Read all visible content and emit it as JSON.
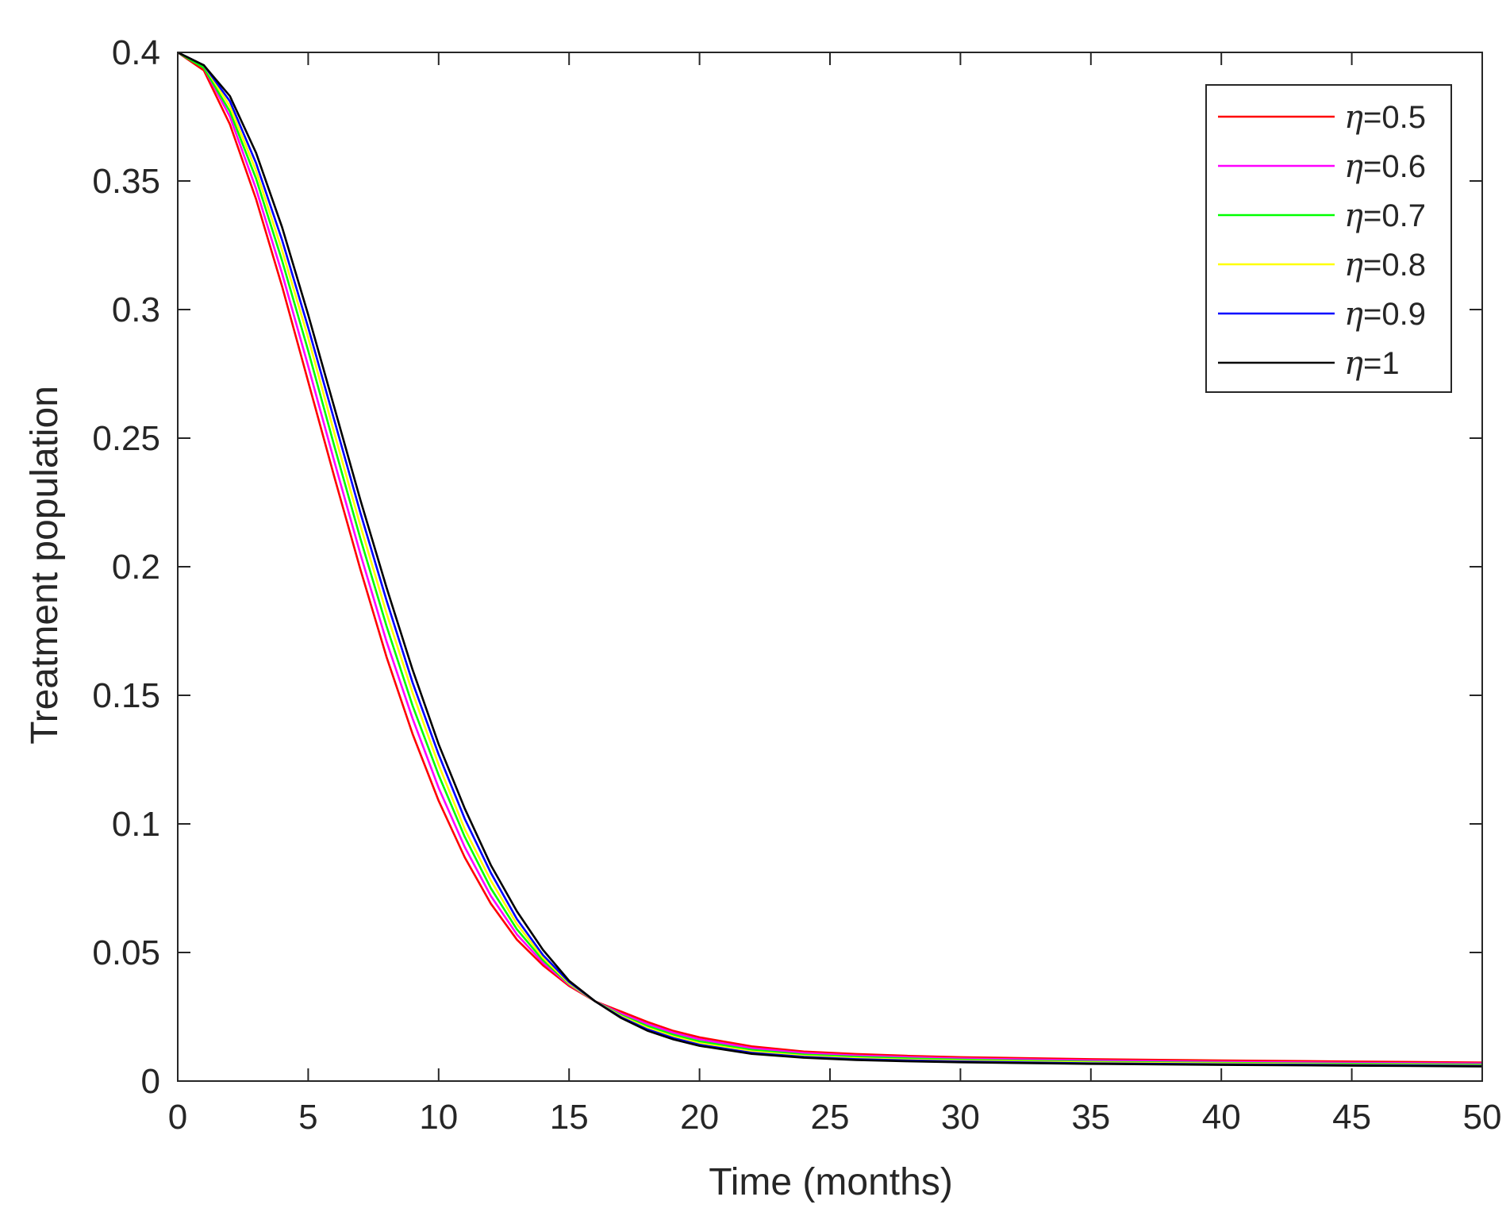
{
  "chart_data": {
    "type": "line",
    "title": "",
    "xlabel": "Time (months)",
    "ylabel": "Treatment population",
    "xlim": [
      0,
      50
    ],
    "ylim": [
      0,
      0.4
    ],
    "xticks": [
      0,
      5,
      10,
      15,
      20,
      25,
      30,
      35,
      40,
      45,
      50
    ],
    "yticks": [
      0,
      0.05,
      0.1,
      0.15,
      0.2,
      0.25,
      0.3,
      0.35,
      0.4
    ],
    "xtick_labels": [
      "0",
      "5",
      "10",
      "15",
      "20",
      "25",
      "30",
      "35",
      "40",
      "45",
      "50"
    ],
    "ytick_labels": [
      "0",
      "0.05",
      "0.1",
      "0.15",
      "0.2",
      "0.25",
      "0.3",
      "0.35",
      "0.4"
    ],
    "grid": false,
    "legend_position": "top-right",
    "x": [
      0,
      1,
      2,
      3,
      4,
      5,
      6,
      7,
      8,
      9,
      10,
      11,
      12,
      13,
      14,
      15,
      16,
      17,
      18,
      19,
      20,
      22,
      24,
      26,
      28,
      30,
      35,
      40,
      45,
      50
    ],
    "series": [
      {
        "name": "η=0.5",
        "symbol": "η",
        "label_value": "=0.5",
        "color": "#ff0000",
        "values": [
          0.4,
          0.393,
          0.372,
          0.343,
          0.309,
          0.272,
          0.235,
          0.199,
          0.165,
          0.135,
          0.109,
          0.087,
          0.069,
          0.055,
          0.045,
          0.037,
          0.031,
          0.027,
          0.023,
          0.0195,
          0.017,
          0.0135,
          0.0115,
          0.0105,
          0.0098,
          0.0093,
          0.0085,
          0.008,
          0.0076,
          0.0072
        ]
      },
      {
        "name": "η=0.6",
        "symbol": "η",
        "label_value": "=0.6",
        "color": "#ff00ff",
        "values": [
          0.4,
          0.394,
          0.375,
          0.347,
          0.314,
          0.278,
          0.241,
          0.205,
          0.171,
          0.141,
          0.114,
          0.091,
          0.072,
          0.057,
          0.046,
          0.0375,
          0.031,
          0.0262,
          0.0222,
          0.0188,
          0.0162,
          0.0128,
          0.0109,
          0.0099,
          0.0093,
          0.0088,
          0.008,
          0.0075,
          0.0071,
          0.0068
        ]
      },
      {
        "name": "η=0.7",
        "symbol": "η",
        "label_value": "=0.7",
        "color": "#00ff00",
        "values": [
          0.4,
          0.394,
          0.377,
          0.351,
          0.319,
          0.284,
          0.247,
          0.211,
          0.177,
          0.146,
          0.119,
          0.095,
          0.075,
          0.059,
          0.047,
          0.0378,
          0.031,
          0.0256,
          0.0214,
          0.018,
          0.0154,
          0.0121,
          0.0103,
          0.0094,
          0.0088,
          0.0083,
          0.0075,
          0.0071,
          0.0067,
          0.0064
        ]
      },
      {
        "name": "η=0.8",
        "symbol": "η",
        "label_value": "=0.8",
        "color": "#ffff00",
        "values": [
          0.4,
          0.395,
          0.379,
          0.354,
          0.323,
          0.289,
          0.252,
          0.216,
          0.182,
          0.151,
          0.123,
          0.098,
          0.078,
          0.061,
          0.048,
          0.038,
          0.031,
          0.0252,
          0.0207,
          0.0173,
          0.0147,
          0.0115,
          0.0098,
          0.0089,
          0.0083,
          0.0079,
          0.0072,
          0.0068,
          0.0064,
          0.0061
        ]
      },
      {
        "name": "η=0.9",
        "symbol": "η",
        "label_value": "=0.9",
        "color": "#0000ff",
        "values": [
          0.4,
          0.395,
          0.381,
          0.357,
          0.327,
          0.293,
          0.257,
          0.221,
          0.187,
          0.155,
          0.127,
          0.102,
          0.081,
          0.063,
          0.049,
          0.0385,
          0.031,
          0.0248,
          0.0201,
          0.0167,
          0.0141,
          0.011,
          0.0094,
          0.0085,
          0.008,
          0.0076,
          0.0069,
          0.0065,
          0.0062,
          0.0059
        ]
      },
      {
        "name": "η=1",
        "symbol": "η",
        "label_value": "=1",
        "color": "#000000",
        "values": [
          0.4,
          0.395,
          0.383,
          0.361,
          0.332,
          0.298,
          0.262,
          0.226,
          0.192,
          0.16,
          0.131,
          0.106,
          0.084,
          0.066,
          0.051,
          0.039,
          0.031,
          0.0245,
          0.0196,
          0.0162,
          0.0137,
          0.0106,
          0.0091,
          0.0082,
          0.0077,
          0.0073,
          0.0067,
          0.0063,
          0.006,
          0.0057
        ]
      }
    ]
  }
}
